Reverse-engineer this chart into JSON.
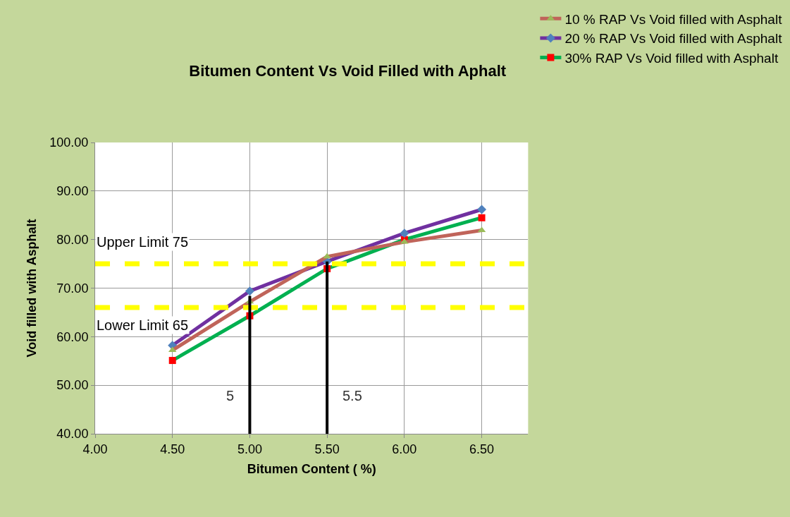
{
  "chart_data": {
    "type": "line",
    "title": "Bitumen Content Vs Void Filled with Aphalt",
    "xlabel": "Bitumen Content ( %)",
    "ylabel": "Void filled with Asphalt",
    "x": [
      4.5,
      5.0,
      5.5,
      6.0,
      6.5
    ],
    "series": [
      {
        "name": "10 % RAP Vs Void filled with Asphalt",
        "color": "#c0645a",
        "colors": [
          "#9bbb59",
          "#9bbb59",
          "#9bbb59",
          "#9bbb59",
          "#9bbb59"
        ],
        "marker": "triangle",
        "values": [
          57.2,
          67.2,
          76.5,
          79.5,
          81.9
        ]
      },
      {
        "name": "20 % RAP Vs Void filled with Asphalt",
        "color": "#7030a0",
        "colors": [
          "#4f81bd",
          "#4f81bd",
          "#4f81bd",
          "#4f81bd",
          "#4f81bd"
        ],
        "marker": "diamond",
        "values": [
          58.2,
          69.4,
          75.5,
          81.3,
          86.2
        ]
      },
      {
        "name": "30% RAP Vs Void filled with Asphalt",
        "color": "#00b050",
        "colors": [
          "#ff0000",
          "#ff0000",
          "#ff0000",
          "#ff0000",
          "#ff0000"
        ],
        "marker": "square",
        "values": [
          55.1,
          64.3,
          74.0,
          80.0,
          84.5
        ]
      }
    ],
    "xlim": [
      4.0,
      6.8
    ],
    "ylim": [
      40,
      100
    ],
    "xticks": [
      {
        "value": 4.0,
        "label": "4.00"
      },
      {
        "value": 4.5,
        "label": "4.50"
      },
      {
        "value": 5.0,
        "label": "5.00"
      },
      {
        "value": 5.5,
        "label": "5.50"
      },
      {
        "value": 6.0,
        "label": "6.00"
      },
      {
        "value": 6.5,
        "label": "6.50"
      }
    ],
    "yticks": [
      {
        "value": 40,
        "label": "40.00"
      },
      {
        "value": 50,
        "label": "50.00"
      },
      {
        "value": 60,
        "label": "60.00"
      },
      {
        "value": 70,
        "label": "70.00"
      },
      {
        "value": 80,
        "label": "80.00"
      },
      {
        "value": 90,
        "label": "90.00"
      },
      {
        "value": 100,
        "label": "100.00"
      }
    ],
    "ref_lines": [
      {
        "axis": "y",
        "value": 75,
        "label": "Upper Limit 75",
        "color": "#ffff00",
        "line_style": "dashed"
      },
      {
        "axis": "y",
        "value": 66,
        "label": "Lower Limit 65",
        "color": "#ffff00",
        "line_style": "dashed"
      },
      {
        "axis": "x",
        "value": 5.0,
        "label": "5",
        "color": "#000000"
      },
      {
        "axis": "x",
        "value": 5.5,
        "label": "5.5",
        "color": "#000000"
      }
    ],
    "grid": true,
    "legend": "top right",
    "line_style": "solid"
  }
}
